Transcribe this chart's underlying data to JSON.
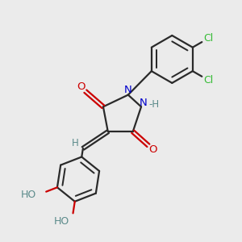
{
  "bg_color": "#ebebeb",
  "bond_color": "#2a2a2a",
  "N_color": "#0000cc",
  "O_color": "#cc0000",
  "Cl_color": "#33bb33",
  "H_color": "#5a8a8a",
  "lw": 1.6,
  "figsize": [
    3.0,
    3.0
  ],
  "xlim": [
    0,
    10
  ],
  "ylim": [
    0,
    10
  ]
}
